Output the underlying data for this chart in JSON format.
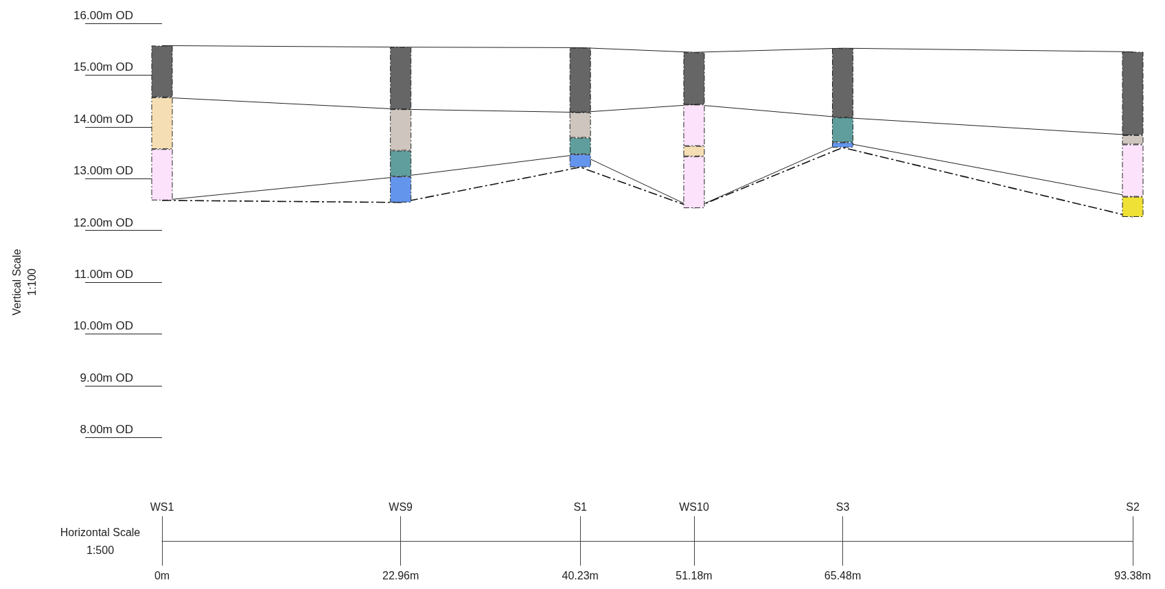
{
  "chart_data": {
    "type": "bar",
    "ylabel": "Vertical Scale\n1:100",
    "xlabel": "Horizontal Scale\n1:500",
    "x": [
      0,
      22.96,
      40.23,
      51.18,
      65.48,
      93.38
    ],
    "xlim": [
      0,
      93.38
    ],
    "xticks": [
      {
        "value": 0,
        "label": "0m"
      },
      {
        "value": 22.96,
        "label": "22.96m"
      },
      {
        "value": 40.23,
        "label": "40.23m"
      },
      {
        "value": 51.18,
        "label": "51.18m"
      },
      {
        "value": 65.48,
        "label": "65.48m"
      },
      {
        "value": 93.38,
        "label": "93.38m"
      }
    ],
    "annotations": [
      {
        "text": "WS1",
        "x": 0
      },
      {
        "text": "WS9",
        "x": 22.96
      },
      {
        "text": "S1",
        "x": 40.23
      },
      {
        "text": "WS10",
        "x": 51.18
      },
      {
        "text": "S3",
        "x": 65.48
      },
      {
        "text": "S2",
        "x": 93.38
      }
    ],
    "ylim": [
      6,
      16
    ],
    "yticks": [
      {
        "value": 8,
        "label": "8.00m OD"
      },
      {
        "value": 9,
        "label": "9.00m OD"
      },
      {
        "value": 10,
        "label": "10.00m OD"
      },
      {
        "value": 11,
        "label": "11.00m OD"
      },
      {
        "value": 12,
        "label": "12.00m OD"
      },
      {
        "value": 13,
        "label": "13.00m OD"
      },
      {
        "value": 14,
        "label": "14.00m OD"
      },
      {
        "value": 15,
        "label": "15.00m OD"
      },
      {
        "value": 16,
        "label": "16.00m OD"
      }
    ],
    "grid": false,
    "marker": "none",
    "series": [
      {
        "color": "#666666",
        "base": [
          14.57,
          14.34,
          14.28,
          14.43,
          14.18,
          13.84
        ],
        "values": [
          1.0,
          1.2,
          1.25,
          1.01,
          1.34,
          1.61
        ]
      },
      {
        "color": "#f5deb3",
        "base": [
          13.57,
          null,
          null,
          13.43,
          null,
          null
        ],
        "values": [
          1.0,
          null,
          null,
          0.2,
          null,
          null
        ]
      },
      {
        "color": "#fde2fb",
        "base": [
          12.58,
          null,
          null,
          13.63,
          null,
          12.65
        ],
        "values": [
          0.99,
          null,
          null,
          0.8,
          null,
          1.01
        ]
      },
      {
        "color": "#fde2fb",
        "base": [
          null,
          null,
          null,
          12.43,
          null,
          null
        ],
        "values": [
          null,
          null,
          null,
          1.0,
          null,
          null
        ]
      },
      {
        "color": "#cdc5be",
        "base": [
          null,
          13.54,
          13.79,
          null,
          null,
          13.66
        ],
        "values": [
          null,
          0.8,
          0.49,
          null,
          null,
          0.18
        ]
      },
      {
        "color": "#5f9e9c",
        "base": [
          null,
          13.04,
          13.47,
          null,
          13.7,
          null
        ],
        "values": [
          null,
          0.5,
          0.32,
          null,
          0.48,
          null
        ]
      },
      {
        "color": "#6495ed",
        "base": [
          null,
          12.54,
          13.22,
          null,
          13.6,
          null
        ],
        "values": [
          null,
          0.5,
          0.25,
          null,
          0.1,
          null
        ]
      },
      {
        "color": "#efe135",
        "base": [
          null,
          null,
          null,
          null,
          null,
          12.26
        ],
        "values": [
          null,
          null,
          null,
          null,
          null,
          0.39
        ]
      },
      {
        "type": "line",
        "color": "#222222",
        "line_style": "solid",
        "values": [
          15.57,
          15.54,
          15.53,
          15.44,
          15.52,
          15.45
        ]
      },
      {
        "type": "line",
        "color": "#222222",
        "line_style": "solid",
        "values": [
          14.57,
          14.34,
          14.28,
          14.43,
          14.18,
          13.84
        ]
      },
      {
        "type": "line",
        "color": "#222222",
        "line_style": "solid",
        "values": [
          12.58,
          13.04,
          13.47,
          12.43,
          13.7,
          12.65
        ]
      },
      {
        "type": "line",
        "color": "#111111",
        "line_style": "dashed",
        "values": [
          12.58,
          12.54,
          13.22,
          12.43,
          13.6,
          12.26
        ]
      }
    ]
  }
}
